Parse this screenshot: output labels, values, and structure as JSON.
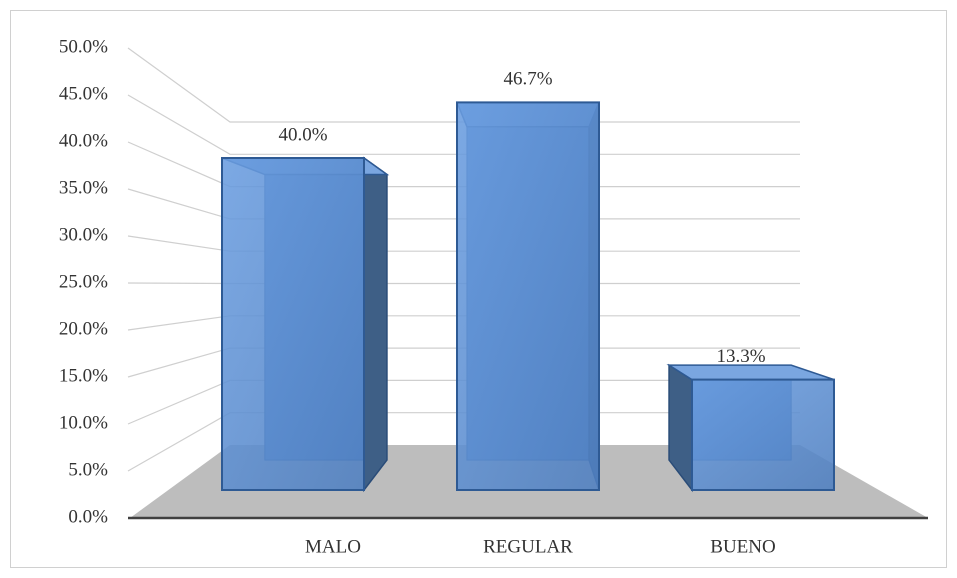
{
  "chart_data": {
    "type": "bar3d",
    "categories": [
      "MALO",
      "REGULAR",
      "BUENO"
    ],
    "values": [
      40.0,
      46.7,
      13.3
    ],
    "value_labels": [
      "40.0%",
      "46.7%",
      "13.3%"
    ],
    "color": "#5b8fd4",
    "ylim": [
      0,
      50
    ],
    "yticks": [
      {
        "value": 0,
        "label": "0.0%"
      },
      {
        "value": 5,
        "label": "5.0%"
      },
      {
        "value": 10,
        "label": "10.0%"
      },
      {
        "value": 15,
        "label": "15.0%"
      },
      {
        "value": 20,
        "label": "20.0%"
      },
      {
        "value": 25,
        "label": "25.0%"
      },
      {
        "value": 30,
        "label": "30.0%"
      },
      {
        "value": 35,
        "label": "35.0%"
      },
      {
        "value": 40,
        "label": "40.0%"
      },
      {
        "value": 45,
        "label": "45.0%"
      },
      {
        "value": 50,
        "label": "50.0%"
      }
    ],
    "grid": true
  }
}
